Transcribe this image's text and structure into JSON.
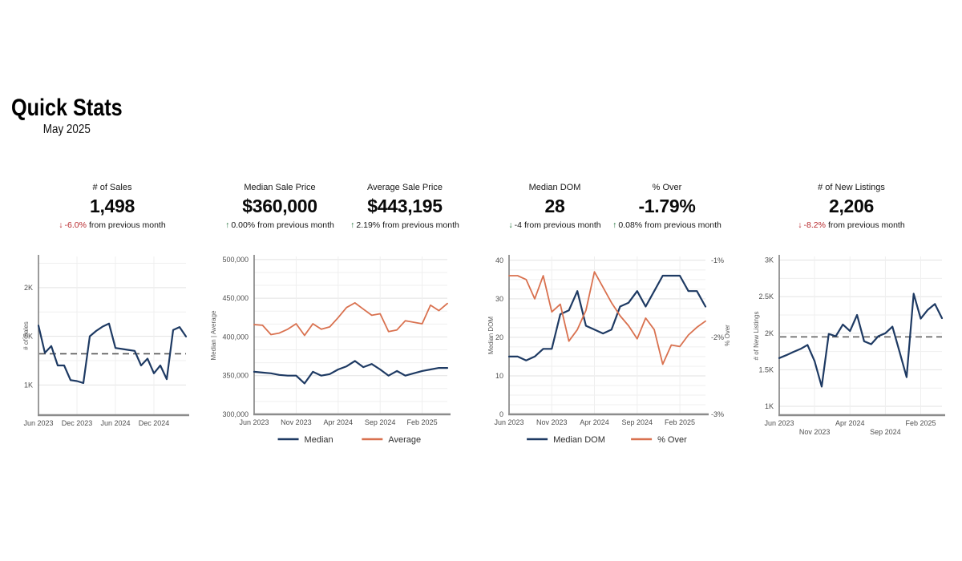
{
  "header": {
    "title": "Quick Stats",
    "subtitle": "May 2025"
  },
  "palette": {
    "navy": "#1e3a63",
    "salmon": "#d9714f",
    "red": "#b82a2e",
    "green": "#1e7038",
    "text": "#161616",
    "tick": "#4f4f4f",
    "axis_label": "#5a5a5a",
    "axis_line": "#8c8c8c",
    "grid_major": "#e2e2e2",
    "grid_minor": "#efefef",
    "dash_line": "#555555"
  },
  "stats": [
    {
      "label": "# of Sales",
      "value": "1,498",
      "change": {
        "direction": "down",
        "arrow_color": "#b82a2e",
        "value_color": "#b82a2e",
        "value_text": "-6.0%",
        "suffix_text": "from previous month"
      }
    },
    {
      "label": "Median Sale Price",
      "value": "$360,000",
      "change": {
        "direction": "up",
        "arrow_color": "#1e7038",
        "value_color": "#161616",
        "value_text": "0.00%",
        "suffix_text": "from previous month"
      }
    },
    {
      "label": "Average Sale Price",
      "value": "$443,195",
      "change": {
        "direction": "up",
        "arrow_color": "#1e7038",
        "value_color": "#161616",
        "value_text": "2.19%",
        "suffix_text": "from previous month"
      }
    },
    {
      "label": "Median DOM",
      "value": "28",
      "change": {
        "direction": "down",
        "arrow_color": "#1e7038",
        "value_color": "#161616",
        "value_text": "-4",
        "suffix_text": "from previous month"
      }
    },
    {
      "label": "% Over",
      "value": "-1.79%",
      "change": {
        "direction": "up",
        "arrow_color": "#1e7038",
        "value_color": "#161616",
        "value_text": "0.08%",
        "suffix_text": "from previous month"
      }
    },
    {
      "label": "# of New Listings",
      "value": "2,206",
      "change": {
        "direction": "down",
        "arrow_color": "#b82a2e",
        "value_color": "#b82a2e",
        "value_text": "-8.2%",
        "suffix_text": "from previous month"
      }
    }
  ],
  "chart_data": [
    {
      "name": "number-of-sales-trend",
      "type": "line",
      "ylabel": "# of Sales",
      "x": [
        "Jun 2023",
        "Jul 2023",
        "Aug 2023",
        "Sep 2023",
        "Oct 2023",
        "Nov 2023",
        "Dec 2023",
        "Jan 2024",
        "Feb 2024",
        "Mar 2024",
        "Apr 2024",
        "May 2024",
        "Jun 2024",
        "Jul 2024",
        "Aug 2024",
        "Sep 2024",
        "Oct 2024",
        "Nov 2024",
        "Dec 2024",
        "Jan 2025",
        "Feb 2025",
        "Mar 2025",
        "Apr 2025",
        "May 2025"
      ],
      "series": [
        {
          "name": "# of Sales",
          "color": "navy",
          "values": [
            1610,
            1330,
            1400,
            1200,
            1200,
            1050,
            1040,
            1020,
            1500,
            1555,
            1600,
            1630,
            1380,
            1370,
            1360,
            1350,
            1200,
            1270,
            1120,
            1200,
            1060,
            1565,
            1595,
            1498
          ]
        }
      ],
      "ylim": [
        690,
        2320
      ],
      "yticks": [
        {
          "v": 1000,
          "label": "1K"
        },
        {
          "v": 1500,
          "label": "1.5K"
        },
        {
          "v": 2000,
          "label": "2K"
        }
      ],
      "xticks": [
        {
          "i": 0,
          "label": "Jun 2023",
          "row": 0
        },
        {
          "i": 6,
          "label": "Dec 2023",
          "row": 0
        },
        {
          "i": 12,
          "label": "Jun 2024",
          "row": 0
        },
        {
          "i": 18,
          "label": "Dec 2024",
          "row": 0
        }
      ],
      "avg_line": 1320,
      "minor_divisions": 2,
      "show_legend": false,
      "grid": true,
      "legend_position": "none"
    },
    {
      "name": "sale-price-trend",
      "type": "line",
      "ylabel": "Median | Average",
      "x": [
        "Jun 2023",
        "Jul 2023",
        "Aug 2023",
        "Sep 2023",
        "Oct 2023",
        "Nov 2023",
        "Dec 2023",
        "Jan 2024",
        "Feb 2024",
        "Mar 2024",
        "Apr 2024",
        "May 2024",
        "Jun 2024",
        "Jul 2024",
        "Aug 2024",
        "Sep 2024",
        "Oct 2024",
        "Nov 2024",
        "Dec 2024",
        "Jan 2025",
        "Feb 2025",
        "Mar 2025",
        "Apr 2025",
        "May 2025"
      ],
      "series": [
        {
          "name": "Median",
          "color": "navy",
          "values": [
            355000,
            354000,
            353000,
            351000,
            350000,
            350000,
            340000,
            355000,
            350000,
            352000,
            358000,
            362000,
            369000,
            361000,
            365000,
            358000,
            350000,
            356000,
            350000,
            353000,
            356000,
            358000,
            360000,
            360000
          ]
        },
        {
          "name": "Average",
          "color": "salmon",
          "values": [
            416000,
            415000,
            403000,
            405000,
            410000,
            417000,
            402000,
            417000,
            410000,
            413000,
            425000,
            438000,
            444000,
            436000,
            428000,
            430000,
            407000,
            409000,
            421000,
            419000,
            417000,
            441000,
            434000,
            443195
          ]
        }
      ],
      "ylim": [
        300000,
        504000
      ],
      "yticks": [
        {
          "v": 300000,
          "label": "300,000"
        },
        {
          "v": 350000,
          "label": "350,000"
        },
        {
          "v": 400000,
          "label": "400,000"
        },
        {
          "v": 450000,
          "label": "450,000"
        },
        {
          "v": 500000,
          "label": "500,000"
        }
      ],
      "xticks": [
        {
          "i": 0,
          "label": "Jun 2023",
          "row": 0
        },
        {
          "i": 5,
          "label": "Nov 2023",
          "row": 0
        },
        {
          "i": 10,
          "label": "Apr 2024",
          "row": 0
        },
        {
          "i": 15,
          "label": "Sep 2024",
          "row": 0
        },
        {
          "i": 20,
          "label": "Feb 2025",
          "row": 0
        }
      ],
      "minor_divisions": 3,
      "show_legend": true,
      "grid": true,
      "legend_position": "bottom"
    },
    {
      "name": "dom-and-percent-over-trend",
      "type": "line",
      "ylabel": "Median DOM",
      "right_ylabel": "% Over",
      "x": [
        "Jun 2023",
        "Jul 2023",
        "Aug 2023",
        "Sep 2023",
        "Oct 2023",
        "Nov 2023",
        "Dec 2023",
        "Jan 2024",
        "Feb 2024",
        "Mar 2024",
        "Apr 2024",
        "May 2024",
        "Jun 2024",
        "Jul 2024",
        "Aug 2024",
        "Sep 2024",
        "Oct 2024",
        "Nov 2024",
        "Dec 2024",
        "Jan 2025",
        "Feb 2025",
        "Mar 2025",
        "Apr 2025",
        "May 2025"
      ],
      "series": [
        {
          "name": "Median DOM",
          "color": "navy",
          "axis": "left",
          "values": [
            15,
            15,
            14,
            15,
            17,
            17,
            26,
            27,
            32,
            23,
            22,
            21,
            22,
            28,
            29,
            32,
            28,
            32,
            36,
            36,
            36,
            32,
            32,
            28
          ]
        },
        {
          "name": "% Over",
          "color": "salmon",
          "axis": "right",
          "values": [
            -1.2,
            -1.2,
            -1.25,
            -1.5,
            -1.2,
            -1.67,
            -1.57,
            -2.05,
            -1.9,
            -1.65,
            -1.15,
            -1.35,
            -1.55,
            -1.72,
            -1.85,
            -2.02,
            -1.75,
            -1.9,
            -2.35,
            -2.1,
            -2.12,
            -1.97,
            -1.87,
            -1.79
          ]
        }
      ],
      "ylim": [
        0,
        41
      ],
      "yticks": [
        {
          "v": 0,
          "label": "0"
        },
        {
          "v": 10,
          "label": "10"
        },
        {
          "v": 20,
          "label": "20"
        },
        {
          "v": 30,
          "label": "30"
        },
        {
          "v": 40,
          "label": "40"
        }
      ],
      "right_ylim": [
        -3,
        -0.95
      ],
      "right_yticks": [
        {
          "v": -1,
          "label": "-1%"
        },
        {
          "v": -2,
          "label": "-2%"
        },
        {
          "v": -3,
          "label": "-3%"
        }
      ],
      "xticks": [
        {
          "i": 0,
          "label": "Jun 2023",
          "row": 0
        },
        {
          "i": 5,
          "label": "Nov 2023",
          "row": 0
        },
        {
          "i": 10,
          "label": "Apr 2024",
          "row": 0
        },
        {
          "i": 15,
          "label": "Sep 2024",
          "row": 0
        },
        {
          "i": 20,
          "label": "Feb 2025",
          "row": 0
        }
      ],
      "minor_divisions": 4,
      "show_legend": true,
      "grid": true,
      "legend_position": "bottom"
    },
    {
      "name": "new-listings-trend",
      "type": "line",
      "ylabel": "# of New Listings",
      "x": [
        "Jun 2023",
        "Jul 2023",
        "Aug 2023",
        "Sep 2023",
        "Oct 2023",
        "Nov 2023",
        "Dec 2023",
        "Jan 2024",
        "Feb 2024",
        "Mar 2024",
        "Apr 2024",
        "May 2024",
        "Jun 2024",
        "Jul 2024",
        "Aug 2024",
        "Sep 2024",
        "Oct 2024",
        "Nov 2024",
        "Dec 2024",
        "Jan 2025",
        "Feb 2025",
        "Mar 2025",
        "Apr 2025",
        "May 2025"
      ],
      "series": [
        {
          "name": "# of New Listings",
          "color": "navy",
          "values": [
            1660,
            1700,
            1745,
            1785,
            1840,
            1620,
            1270,
            1990,
            1960,
            2120,
            2030,
            2250,
            1890,
            1850,
            1960,
            2000,
            2090,
            1750,
            1400,
            2540,
            2200,
            2320,
            2400,
            2206
          ]
        }
      ],
      "ylim": [
        880,
        3050
      ],
      "yticks": [
        {
          "v": 1000,
          "label": "1K"
        },
        {
          "v": 1500,
          "label": "1.5K"
        },
        {
          "v": 2000,
          "label": "2K"
        },
        {
          "v": 2500,
          "label": "2.5K"
        },
        {
          "v": 3000,
          "label": "3K"
        }
      ],
      "xticks": [
        {
          "i": 0,
          "label": "Jun 2023",
          "row": 0
        },
        {
          "i": 5,
          "label": "Nov 2023",
          "row": 1
        },
        {
          "i": 10,
          "label": "Apr 2024",
          "row": 0
        },
        {
          "i": 15,
          "label": "Sep 2024",
          "row": 1
        },
        {
          "i": 20,
          "label": "Feb 2025",
          "row": 0
        }
      ],
      "avg_line": 1950,
      "minor_divisions": 2,
      "show_legend": false,
      "grid": true,
      "legend_position": "none"
    }
  ]
}
